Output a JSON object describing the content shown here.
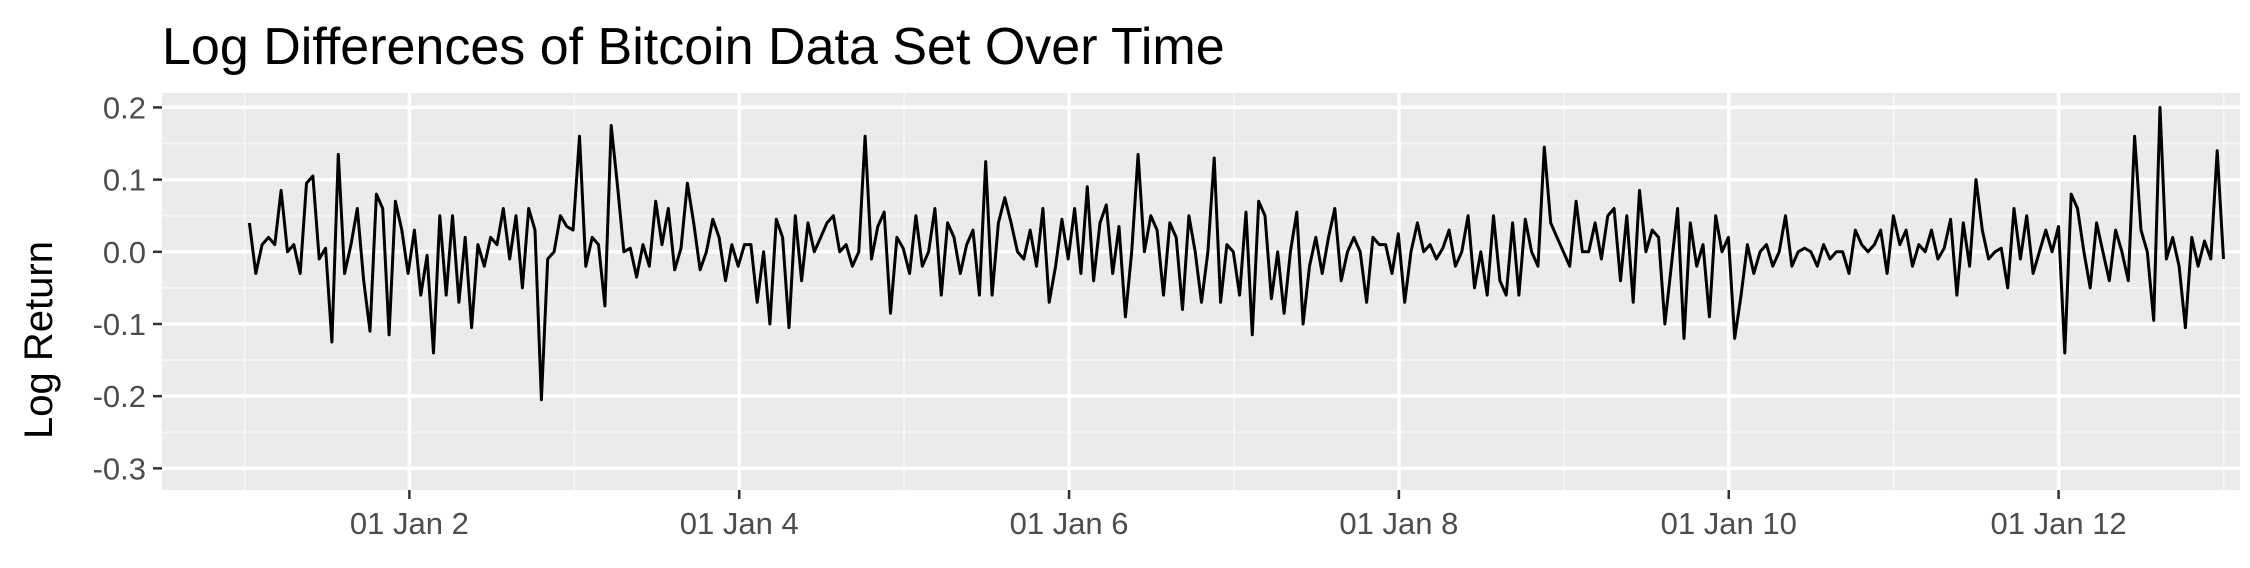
{
  "colors": {
    "panel_background": "#ebebeb",
    "grid_major": "#ffffff",
    "grid_minor": "#f5f5f5",
    "line": "#000000",
    "tick_text": "#4d4d4d",
    "tick_mark": "#333333"
  },
  "chart_data": {
    "type": "line",
    "title": "Log Differences of Bitcoin Data Set Over Time",
    "xlabel": "",
    "ylabel": "Log Return",
    "grid": true,
    "legend": "none",
    "x_unit": "days",
    "xlim": [
      0.5,
      13.1
    ],
    "ylim": [
      -0.33,
      0.22
    ],
    "x_ticks": [
      2,
      4,
      6,
      8,
      10,
      12
    ],
    "x_tick_labels": [
      "01 Jan 2",
      "01 Jan 4",
      "01 Jan 6",
      "01 Jan 8",
      "01 Jan 10",
      "01 Jan 12"
    ],
    "y_ticks": [
      -0.3,
      -0.2,
      -0.1,
      0.0,
      0.1,
      0.2
    ],
    "y_tick_labels": [
      "-0.3",
      "-0.2",
      "-0.1",
      "0.0",
      "0.1",
      "0.2"
    ],
    "series": [
      {
        "values": [
          0.04,
          -0.03,
          0.01,
          0.02,
          0.01,
          0.085,
          0.0,
          0.01,
          -0.03,
          0.095,
          0.105,
          -0.01,
          0.005,
          -0.125,
          0.135,
          -0.03,
          0.01,
          0.06,
          -0.04,
          -0.11,
          0.08,
          0.06,
          -0.115,
          0.07,
          0.03,
          -0.03,
          0.03,
          -0.06,
          -0.005,
          -0.14,
          0.05,
          -0.06,
          0.05,
          -0.07,
          0.02,
          -0.105,
          0.01,
          -0.02,
          0.02,
          0.01,
          0.06,
          -0.01,
          0.05,
          -0.05,
          0.06,
          0.03,
          -0.205,
          -0.01,
          0.0,
          0.05,
          0.035,
          0.03,
          0.16,
          -0.02,
          0.02,
          0.01,
          -0.075,
          0.175,
          0.09,
          0.0,
          0.005,
          -0.035,
          0.01,
          -0.02,
          0.07,
          0.01,
          0.06,
          -0.025,
          0.005,
          0.095,
          0.04,
          -0.025,
          0.0,
          0.045,
          0.02,
          -0.04,
          0.01,
          -0.02,
          0.01,
          0.01,
          -0.07,
          0.0,
          -0.1,
          0.045,
          0.02,
          -0.105,
          0.05,
          -0.04,
          0.04,
          0.0,
          0.02,
          0.04,
          0.05,
          0.0,
          0.01,
          -0.02,
          0.0,
          0.16,
          -0.01,
          0.035,
          0.055,
          -0.085,
          0.02,
          0.005,
          -0.03,
          0.05,
          -0.02,
          0.0,
          0.06,
          -0.06,
          0.04,
          0.02,
          -0.03,
          0.01,
          0.03,
          -0.06,
          0.125,
          -0.06,
          0.04,
          0.075,
          0.04,
          0.0,
          -0.01,
          0.03,
          -0.02,
          0.06,
          -0.07,
          -0.02,
          0.045,
          -0.01,
          0.06,
          -0.03,
          0.09,
          -0.04,
          0.04,
          0.065,
          -0.03,
          0.035,
          -0.09,
          0.0,
          0.135,
          0.0,
          0.05,
          0.03,
          -0.06,
          0.04,
          0.02,
          -0.08,
          0.05,
          0.0,
          -0.07,
          0.0,
          0.13,
          -0.07,
          0.01,
          0.0,
          -0.06,
          0.055,
          -0.115,
          0.07,
          0.05,
          -0.065,
          0.0,
          -0.085,
          0.0,
          0.055,
          -0.1,
          -0.02,
          0.02,
          -0.03,
          0.02,
          0.06,
          -0.04,
          0.0,
          0.02,
          0.0,
          -0.07,
          0.02,
          0.01,
          0.01,
          -0.03,
          0.025,
          -0.07,
          0.0,
          0.04,
          0.0,
          0.01,
          -0.01,
          0.005,
          0.03,
          -0.02,
          0.0,
          0.05,
          -0.05,
          0.0,
          -0.06,
          0.05,
          -0.04,
          -0.06,
          0.04,
          -0.06,
          0.045,
          0.0,
          -0.02,
          0.145,
          0.04,
          0.02,
          0.0,
          -0.02,
          0.07,
          0.0,
          0.0,
          0.04,
          -0.01,
          0.05,
          0.06,
          -0.04,
          0.05,
          -0.07,
          0.085,
          0.0,
          0.03,
          0.02,
          -0.1,
          -0.02,
          0.06,
          -0.12,
          0.04,
          -0.02,
          0.01,
          -0.09,
          0.05,
          0.0,
          0.02,
          -0.12,
          -0.06,
          0.01,
          -0.03,
          0.0,
          0.01,
          -0.02,
          0.0,
          0.05,
          -0.02,
          0.0,
          0.005,
          0.0,
          -0.02,
          0.01,
          -0.01,
          0.0,
          0.0,
          -0.03,
          0.03,
          0.01,
          0.0,
          0.01,
          0.03,
          -0.03,
          0.05,
          0.01,
          0.03,
          -0.02,
          0.01,
          0.0,
          0.03,
          -0.01,
          0.005,
          0.045,
          -0.06,
          0.04,
          -0.02,
          0.1,
          0.03,
          -0.01,
          0.0,
          0.005,
          -0.05,
          0.06,
          -0.01,
          0.05,
          -0.03,
          0.0,
          0.03,
          0.0,
          0.035,
          -0.14,
          0.08,
          0.06,
          0.0,
          -0.05,
          0.04,
          0.0,
          -0.04,
          0.03,
          0.0,
          -0.04,
          0.16,
          0.03,
          0.0,
          -0.095,
          0.2,
          -0.01,
          0.02,
          -0.02,
          -0.105,
          0.02,
          -0.02,
          0.015,
          -0.01,
          0.14,
          -0.01
        ]
      }
    ]
  }
}
